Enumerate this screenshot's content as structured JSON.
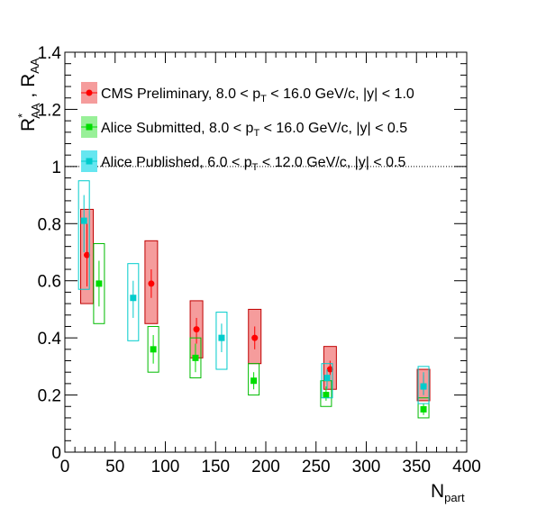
{
  "chart_data": {
    "type": "scatter",
    "title": "",
    "xlabel": {
      "main": "N",
      "sub": "part"
    },
    "ylabel": {
      "part1": "R",
      "part1_sup": "*",
      "part1_sub": "AA",
      "sep": " , ",
      "part2": "R",
      "part2_sub": "AA"
    },
    "xlim": [
      0,
      400
    ],
    "ylim": [
      0,
      1.4
    ],
    "xticks": [
      0,
      50,
      100,
      150,
      200,
      250,
      300,
      350,
      400
    ],
    "yticks": [
      0,
      0.2,
      0.4,
      0.6,
      0.8,
      1,
      1.2,
      1.4
    ],
    "xtick_labels": [
      "0",
      "50",
      "100",
      "150",
      "200",
      "250",
      "300",
      "350",
      "400"
    ],
    "ytick_labels": [
      "0",
      "0.2",
      "0.4",
      "0.6",
      "0.8",
      "1",
      "1.2",
      "1.4"
    ],
    "reference_line": {
      "y": 1,
      "style": "dotted"
    },
    "grid": false,
    "legend_position": "top-left",
    "series": [
      {
        "name": "CMS Preliminary",
        "legend_text": [
          "CMS Preliminary, 8.0 < p",
          "T",
          " < 16.0 GeV/c, |y| < 1.0"
        ],
        "marker": "circle",
        "color": "#ff0000",
        "box_fill": "#f59c9c",
        "box_stroke": "#c00000",
        "box_filled": true,
        "points": [
          {
            "x": 22,
            "y": 0.69,
            "stat": [
              0.58,
              0.8
            ],
            "sys": [
              0.52,
              0.85
            ],
            "w": 14
          },
          {
            "x": 86,
            "y": 0.59,
            "stat": [
              0.54,
              0.64
            ],
            "sys": [
              0.45,
              0.74
            ],
            "w": 14
          },
          {
            "x": 131,
            "y": 0.43,
            "stat": [
              0.38,
              0.47
            ],
            "sys": [
              0.33,
              0.53
            ],
            "w": 14
          },
          {
            "x": 189,
            "y": 0.4,
            "stat": [
              0.36,
              0.44
            ],
            "sys": [
              0.31,
              0.5
            ],
            "w": 14
          },
          {
            "x": 264,
            "y": 0.29,
            "stat": [
              0.27,
              0.32
            ],
            "sys": [
              0.22,
              0.37
            ],
            "w": 14
          },
          {
            "x": 357,
            "y": 0.23,
            "stat": [
              0.2,
              0.27
            ],
            "sys": [
              0.18,
              0.29
            ],
            "w": 14
          }
        ]
      },
      {
        "name": "Alice Submitted",
        "legend_text": [
          "Alice Submitted, 8.0 < p",
          "T",
          " < 16.0 GeV/c, |y| < 0.5"
        ],
        "marker": "square",
        "color": "#00dd00",
        "box_fill": "none",
        "box_stroke": "#00bb00",
        "box_filled": false,
        "points": [
          {
            "x": 34,
            "y": 0.59,
            "stat": [
              0.51,
              0.67
            ],
            "sys": [
              0.45,
              0.73
            ],
            "w": 12
          },
          {
            "x": 88,
            "y": 0.36,
            "stat": [
              0.31,
              0.41
            ],
            "sys": [
              0.28,
              0.44
            ],
            "w": 12
          },
          {
            "x": 130,
            "y": 0.33,
            "stat": [
              0.28,
              0.38
            ],
            "sys": [
              0.26,
              0.4
            ],
            "w": 12
          },
          {
            "x": 188,
            "y": 0.25,
            "stat": [
              0.22,
              0.28
            ],
            "sys": [
              0.2,
              0.31
            ],
            "w": 12
          },
          {
            "x": 260,
            "y": 0.2,
            "stat": [
              0.18,
              0.23
            ],
            "sys": [
              0.16,
              0.25
            ],
            "w": 12
          },
          {
            "x": 357,
            "y": 0.15,
            "stat": [
              0.13,
              0.17
            ],
            "sys": [
              0.12,
              0.19
            ],
            "w": 12
          }
        ]
      },
      {
        "name": "Alice Published",
        "legend_text": [
          "Alice Published, 6.0 < p",
          "T",
          " < 12.0 GeV/c, |y| < 0.5"
        ],
        "marker": "square",
        "color": "#00cccc",
        "box_fill": "none",
        "box_stroke": "#00cccc",
        "box_filled": false,
        "points": [
          {
            "x": 19,
            "y": 0.81,
            "stat": [
              0.7,
              0.9
            ],
            "sys": [
              0.57,
              0.95
            ],
            "w": 12
          },
          {
            "x": 68,
            "y": 0.54,
            "stat": [
              0.47,
              0.6
            ],
            "sys": [
              0.39,
              0.66
            ],
            "w": 12
          },
          {
            "x": 156,
            "y": 0.4,
            "stat": [
              0.35,
              0.45
            ],
            "sys": [
              0.29,
              0.49
            ],
            "w": 12
          },
          {
            "x": 261,
            "y": 0.26,
            "stat": [
              0.22,
              0.29
            ],
            "sys": [
              0.19,
              0.31
            ],
            "w": 12
          },
          {
            "x": 357,
            "y": 0.23,
            "stat": [
              0.2,
              0.28
            ],
            "sys": [
              0.17,
              0.3
            ],
            "w": 12
          }
        ]
      }
    ]
  }
}
